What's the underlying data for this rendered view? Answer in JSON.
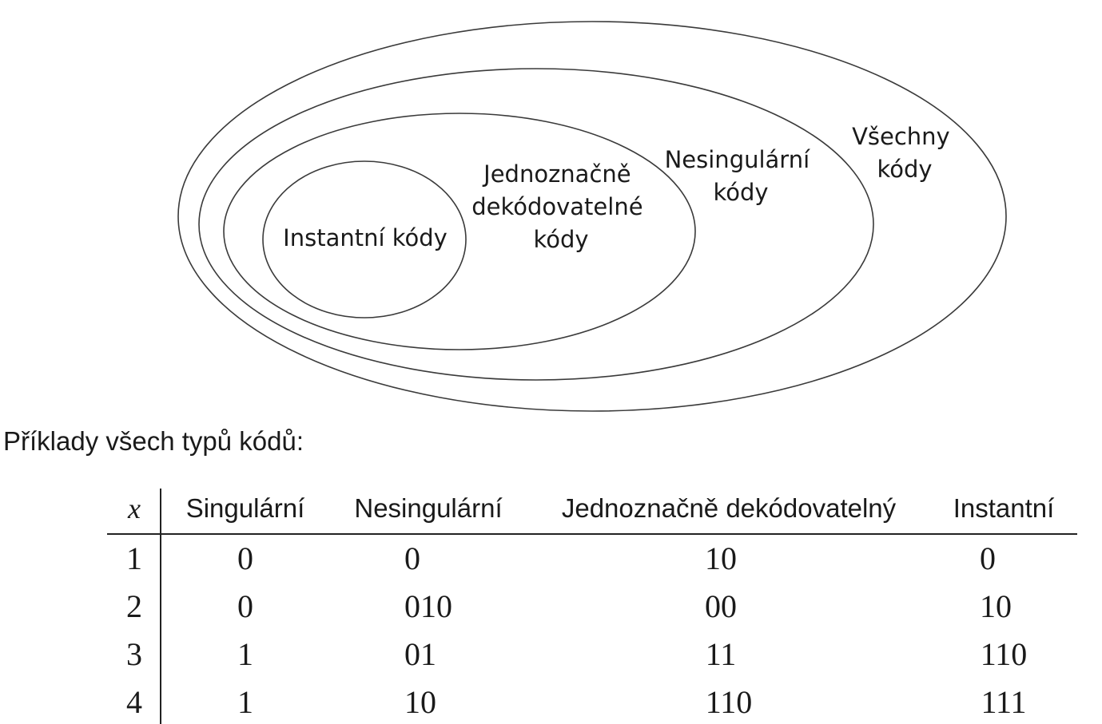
{
  "diagram": {
    "labels": {
      "all_codes": [
        "Všechny",
        "kódy"
      ],
      "nonsingular": [
        "Nesingulární",
        "kódy"
      ],
      "uniquely_decodable": [
        "Jednoznačně",
        "dekódovatelné",
        "kódy"
      ],
      "instantaneous": [
        "Instantní kódy"
      ]
    }
  },
  "caption": "Příklady všech typů kódů:",
  "table": {
    "headers": [
      "x",
      "Singulární",
      "Nesingulární",
      "Jednoznačně dekódovatelný",
      "Instantní"
    ],
    "rows": [
      [
        "1",
        "0",
        "0",
        "10",
        "0"
      ],
      [
        "2",
        "0",
        "010",
        "00",
        "10"
      ],
      [
        "3",
        "1",
        "01",
        "11",
        "110"
      ],
      [
        "4",
        "1",
        "10",
        "110",
        "111"
      ]
    ]
  }
}
